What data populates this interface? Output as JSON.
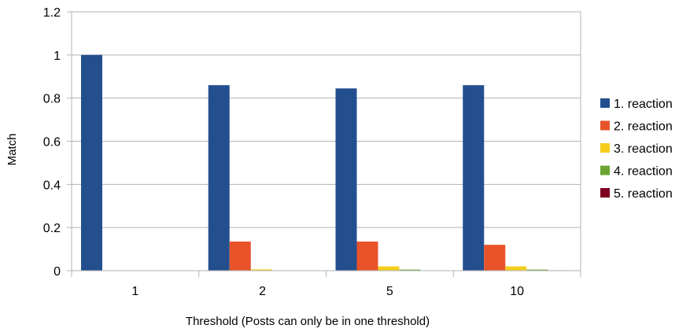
{
  "chart_data": {
    "type": "bar",
    "title": "",
    "xlabel": "Threshold (Posts can only be in one threshold)",
    "ylabel": "Match",
    "categories": [
      "1",
      "2",
      "5",
      "10"
    ],
    "ylim": [
      0,
      1.2
    ],
    "yticks": [
      "0",
      "0.2",
      "0.4",
      "0.6",
      "0.8",
      "1",
      "1.2"
    ],
    "grid": true,
    "legend_position": "right",
    "series": [
      {
        "name": "1. reaction",
        "color": "#234f8f",
        "values": [
          1.0,
          0.86,
          0.845,
          0.86
        ]
      },
      {
        "name": "2. reaction",
        "color": "#e8532a",
        "values": [
          0.0,
          0.135,
          0.135,
          0.12
        ]
      },
      {
        "name": "3. reaction",
        "color": "#f5cd1c",
        "values": [
          0.0,
          0.006,
          0.02,
          0.02
        ]
      },
      {
        "name": "4. reaction",
        "color": "#6aa533",
        "values": [
          0.0,
          0.0,
          0.005,
          0.005
        ]
      },
      {
        "name": "5. reaction",
        "color": "#7e0021",
        "values": [
          0.0,
          0.0,
          0.0,
          0.002
        ]
      }
    ]
  }
}
